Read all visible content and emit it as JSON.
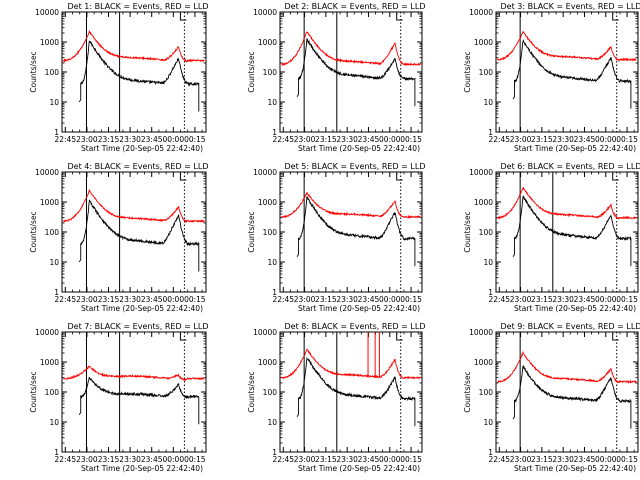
{
  "figure": {
    "colors": {
      "background": "#ffffff",
      "axes": "#000000",
      "events": "#000000",
      "lld": "#ff0000"
    },
    "layout": "3x3 grid of detector panels"
  },
  "chart_data": [
    {
      "type": "line",
      "title": "Det 1: BLACK = Events, RED = LLD",
      "xlabel": "Start Time (20-Sep-05 22:42:40)",
      "ylabel": "Counts/sec",
      "yscale": "log",
      "ylim": [
        1,
        10000
      ],
      "xlim_minutes": [
        0,
        100
      ],
      "xticks": [
        "22:45",
        "23:00",
        "23:15",
        "23:30",
        "23:45",
        "00:00",
        "00:15"
      ],
      "yticks": [
        "1",
        "10",
        "100",
        "1000",
        "10000"
      ],
      "solid_vlines_minutes": [
        17,
        40
      ],
      "dotted_vlines_minutes": [
        85
      ],
      "flare_peak_minutes": 19,
      "flare_peak": {
        "events": 1100,
        "lld": 2200
      },
      "quiet_level": {
        "events": 40,
        "lld": 240
      },
      "second_peak_minutes": 81,
      "second_peak": {
        "events": 280,
        "lld": 700
      },
      "series": [
        {
          "name": "BLACK = Events",
          "color": "#000000"
        },
        {
          "name": "RED = LLD",
          "color": "#ff0000"
        }
      ]
    },
    {
      "type": "line",
      "title": "Det 2: BLACK = Events, RED = LLD",
      "xlabel": "Start Time (20-Sep-05 22:42:40)",
      "ylabel": "Counts/sec",
      "yscale": "log",
      "ylim": [
        1,
        10000
      ],
      "xlim_minutes": [
        0,
        100
      ],
      "xticks": [
        "22:45",
        "23:00",
        "23:15",
        "23:30",
        "23:45",
        "00:00",
        "00:15"
      ],
      "yticks": [
        "1",
        "10",
        "100",
        "1000",
        "10000"
      ],
      "solid_vlines_minutes": [
        17,
        40
      ],
      "dotted_vlines_minutes": [
        85
      ],
      "flare_peak_minutes": 19,
      "flare_peak": {
        "events": 1200,
        "lld": 2200
      },
      "quiet_level": {
        "events": 60,
        "lld": 180
      },
      "second_peak_minutes": 81,
      "second_peak": {
        "events": 280,
        "lld": 900
      },
      "series": [
        {
          "name": "BLACK = Events",
          "color": "#000000"
        },
        {
          "name": "RED = LLD",
          "color": "#ff0000"
        }
      ]
    },
    {
      "type": "line",
      "title": "Det 3: BLACK = Events, RED = LLD",
      "xlabel": "Start Time (20-Sep-05 22:42:40)",
      "ylabel": "Counts/sec",
      "yscale": "log",
      "ylim": [
        1,
        10000
      ],
      "xlim_minutes": [
        0,
        100
      ],
      "xticks": [
        "22:45",
        "23:00",
        "23:15",
        "23:30",
        "23:45",
        "00:00",
        "00:15"
      ],
      "yticks": [
        "1",
        "10",
        "100",
        "1000",
        "10000"
      ],
      "solid_vlines_minutes": [
        17
      ],
      "dotted_vlines_minutes": [
        85
      ],
      "flare_peak_minutes": 19,
      "flare_peak": {
        "events": 1100,
        "lld": 2200
      },
      "quiet_level": {
        "events": 50,
        "lld": 260
      },
      "second_peak_minutes": 81,
      "second_peak": {
        "events": 300,
        "lld": 700
      },
      "series": [
        {
          "name": "BLACK = Events",
          "color": "#000000"
        },
        {
          "name": "RED = LLD",
          "color": "#ff0000"
        }
      ]
    },
    {
      "type": "line",
      "title": "Det 4: BLACK = Events, RED = LLD",
      "xlabel": "Start Time (20-Sep-05 22:42:40)",
      "ylabel": "Counts/sec",
      "yscale": "log",
      "ylim": [
        1,
        10000
      ],
      "xlim_minutes": [
        0,
        100
      ],
      "xticks": [
        "22:45",
        "23:00",
        "23:15",
        "23:30",
        "23:45",
        "00:00",
        "00:15"
      ],
      "yticks": [
        "1",
        "10",
        "100",
        "1000",
        "10000"
      ],
      "solid_vlines_minutes": [
        17,
        40
      ],
      "dotted_vlines_minutes": [
        85
      ],
      "flare_peak_minutes": 19,
      "flare_peak": {
        "events": 1100,
        "lld": 2400
      },
      "quiet_level": {
        "events": 40,
        "lld": 230
      },
      "second_peak_minutes": 81,
      "second_peak": {
        "events": 350,
        "lld": 700
      },
      "series": [
        {
          "name": "BLACK = Events",
          "color": "#000000"
        },
        {
          "name": "RED = LLD",
          "color": "#ff0000"
        }
      ]
    },
    {
      "type": "line",
      "title": "Det 5: BLACK = Events, RED = LLD",
      "xlabel": "Start Time (20-Sep-05 22:42:40)",
      "ylabel": "Counts/sec",
      "yscale": "log",
      "ylim": [
        1,
        10000
      ],
      "xlim_minutes": [
        0,
        100
      ],
      "xticks": [
        "22:45",
        "23:00",
        "23:15",
        "23:30",
        "23:45",
        "00:00",
        "00:15"
      ],
      "yticks": [
        "1",
        "10",
        "100",
        "1000",
        "10000"
      ],
      "solid_vlines_minutes": [
        17
      ],
      "dotted_vlines_minutes": [
        85
      ],
      "flare_peak_minutes": 19,
      "flare_peak": {
        "events": 1400,
        "lld": 2000
      },
      "quiet_level": {
        "events": 60,
        "lld": 320
      },
      "second_peak_minutes": 81,
      "second_peak": {
        "events": 450,
        "lld": 1100
      },
      "series": [
        {
          "name": "BLACK = Events",
          "color": "#000000"
        },
        {
          "name": "RED = LLD",
          "color": "#ff0000"
        }
      ]
    },
    {
      "type": "line",
      "title": "Det 6: BLACK = Events, RED = LLD",
      "xlabel": "Start Time (20-Sep-05 22:42:40)",
      "ylabel": "Counts/sec",
      "yscale": "log",
      "ylim": [
        1,
        10000
      ],
      "xlim_minutes": [
        0,
        100
      ],
      "xticks": [
        "22:45",
        "23:00",
        "23:15",
        "23:30",
        "23:45",
        "00:00",
        "00:15"
      ],
      "yticks": [
        "1",
        "10",
        "100",
        "1000",
        "10000"
      ],
      "solid_vlines_minutes": [
        17,
        40
      ],
      "dotted_vlines_minutes": [
        85
      ],
      "flare_peak_minutes": 19,
      "flare_peak": {
        "events": 1500,
        "lld": 3000
      },
      "quiet_level": {
        "events": 60,
        "lld": 300
      },
      "second_peak_minutes": 81,
      "second_peak": {
        "events": 350,
        "lld": 800
      },
      "series": [
        {
          "name": "BLACK = Events",
          "color": "#000000"
        },
        {
          "name": "RED = LLD",
          "color": "#ff0000"
        }
      ]
    },
    {
      "type": "line",
      "title": "Det 7: BLACK = Events, RED = LLD",
      "xlabel": "Start Time (20-Sep-05 22:42:40)",
      "ylabel": "Counts/sec",
      "yscale": "log",
      "ylim": [
        1,
        10000
      ],
      "xlim_minutes": [
        0,
        100
      ],
      "xticks": [
        "22:45",
        "23:00",
        "23:15",
        "23:30",
        "23:45",
        "00:00",
        "00:15"
      ],
      "yticks": [
        "1",
        "10",
        "100",
        "1000",
        "10000"
      ],
      "solid_vlines_minutes": [
        17,
        40
      ],
      "dotted_vlines_minutes": [
        85
      ],
      "flare_peak_minutes": 19,
      "flare_peak": {
        "events": 300,
        "lld": 700
      },
      "quiet_level": {
        "events": 70,
        "lld": 280
      },
      "second_peak_minutes": 81,
      "second_peak": {
        "events": 180,
        "lld": 380
      },
      "series": [
        {
          "name": "BLACK = Events",
          "color": "#000000"
        },
        {
          "name": "RED = LLD",
          "color": "#ff0000"
        }
      ]
    },
    {
      "type": "line",
      "title": "Det 8: BLACK = Events, RED = LLD",
      "xlabel": "Start Time (20-Sep-05 22:42:40)",
      "ylabel": "Counts/sec",
      "yscale": "log",
      "ylim": [
        1,
        10000
      ],
      "xlim_minutes": [
        0,
        100
      ],
      "xticks": [
        "22:45",
        "23:00",
        "23:15",
        "23:30",
        "23:45",
        "00:00",
        "00:15"
      ],
      "yticks": [
        "1",
        "10",
        "100",
        "1000",
        "10000"
      ],
      "solid_vlines_minutes": [
        17,
        40
      ],
      "dotted_vlines_minutes": [
        85
      ],
      "flare_peak_minutes": 19,
      "flare_peak": {
        "events": 1400,
        "lld": 2600
      },
      "quiet_level": {
        "events": 60,
        "lld": 300
      },
      "second_peak_minutes": 81,
      "second_peak": {
        "events": 300,
        "lld": 1200
      },
      "red_spikes_minutes": [
        62,
        67,
        70
      ],
      "series": [
        {
          "name": "BLACK = Events",
          "color": "#000000"
        },
        {
          "name": "RED = LLD",
          "color": "#ff0000"
        }
      ]
    },
    {
      "type": "line",
      "title": "Det 9: BLACK = Events, RED = LLD",
      "xlabel": "Start Time (20-Sep-05 22:42:40)",
      "ylabel": "Counts/sec",
      "yscale": "log",
      "ylim": [
        1,
        10000
      ],
      "xlim_minutes": [
        0,
        100
      ],
      "xticks": [
        "22:45",
        "23:00",
        "23:15",
        "23:30",
        "23:45",
        "00:00",
        "00:15"
      ],
      "yticks": [
        "1",
        "10",
        "100",
        "1000",
        "10000"
      ],
      "solid_vlines_minutes": [
        17
      ],
      "dotted_vlines_minutes": [
        85
      ],
      "flare_peak_minutes": 19,
      "flare_peak": {
        "events": 700,
        "lld": 2000
      },
      "quiet_level": {
        "events": 50,
        "lld": 220
      },
      "second_peak_minutes": 81,
      "second_peak": {
        "events": 300,
        "lld": 600
      },
      "series": [
        {
          "name": "BLACK = Events",
          "color": "#000000"
        },
        {
          "name": "RED = LLD",
          "color": "#ff0000"
        }
      ]
    }
  ]
}
